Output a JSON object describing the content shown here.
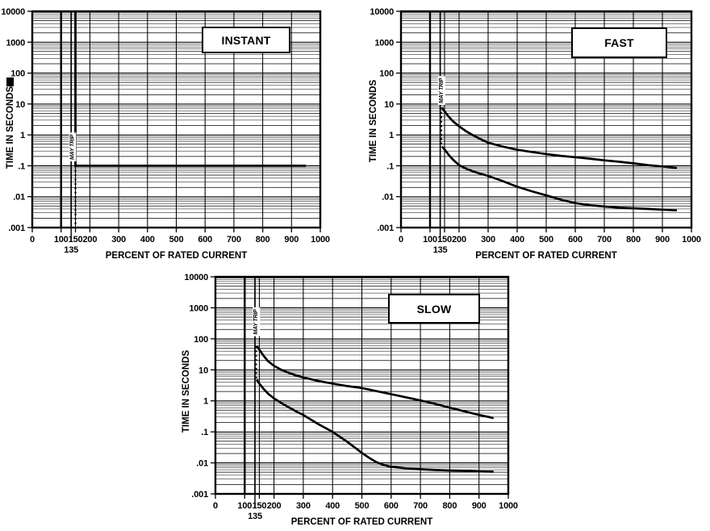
{
  "page": {
    "background": "#ffffff",
    "ink_color": "#000000",
    "artifact_mark": {
      "present": true
    }
  },
  "chart_data": [
    {
      "type": "line",
      "title": "INSTANT",
      "xlabel": "PERCENT OF RATED CURRENT",
      "ylabel": "TIME IN SECONDS",
      "x_axis": {
        "scale": "linear",
        "min": 0,
        "max": 1000,
        "ticks": [
          0,
          100,
          150,
          200,
          300,
          400,
          500,
          600,
          700,
          800,
          900,
          1000
        ],
        "tick_labels": [
          "0",
          "100",
          "150",
          "200",
          "300",
          "400",
          "500",
          "600",
          "700",
          "800",
          "900",
          "1000"
        ],
        "gridlines": [
          100,
          150,
          200,
          300,
          400,
          500,
          600,
          700,
          800,
          900
        ],
        "callout_value": 135,
        "callout_label": "135"
      },
      "y_axis": {
        "scale": "log",
        "min": 0.001,
        "max": 10000,
        "ticks": [
          10000,
          1000,
          100,
          10,
          1,
          0.1,
          0.01,
          0.001
        ],
        "tick_labels": [
          "10000",
          "1000",
          "100",
          "10",
          "1",
          ".1",
          ".01",
          ".001"
        ]
      },
      "zone_label": {
        "text": "MAY TRIP",
        "x": 137,
        "y_center": 0.4
      },
      "series": [
        {
          "name": "must-hold-line-100pct",
          "style": "solid",
          "width": 2.4,
          "points": [
            [
              100,
              10000
            ],
            [
              100,
              0.001
            ]
          ]
        },
        {
          "name": "must-trip-line-135pct",
          "style": "solid",
          "width": 1.7,
          "points": [
            [
              135,
              10000
            ],
            [
              135,
              0.001
            ]
          ]
        },
        {
          "name": "max-trip-time-boundary",
          "style": "solid",
          "width": 2.8,
          "points": [
            [
              150,
              10000
            ],
            [
              150,
              0.1
            ],
            [
              950,
              0.1
            ]
          ]
        },
        {
          "name": "trip-boundary-extension",
          "style": "dotted",
          "width": 2.2,
          "points": [
            [
              150,
              0.1
            ],
            [
              150,
              0.0011
            ]
          ]
        }
      ]
    },
    {
      "type": "line",
      "title": "FAST",
      "xlabel": "PERCENT OF RATED CURRENT",
      "ylabel": "TIME IN SECONDS",
      "x_axis": {
        "scale": "linear",
        "min": 0,
        "max": 1000,
        "ticks": [
          0,
          100,
          150,
          200,
          300,
          400,
          500,
          600,
          700,
          800,
          900,
          1000
        ],
        "tick_labels": [
          "0",
          "100",
          "150",
          "200",
          "300",
          "400",
          "500",
          "600",
          "700",
          "800",
          "900",
          "1000"
        ],
        "gridlines": [
          100,
          150,
          200,
          300,
          400,
          500,
          600,
          700,
          800,
          900
        ],
        "callout_value": 135,
        "callout_label": "135"
      },
      "y_axis": {
        "scale": "log",
        "min": 0.001,
        "max": 10000,
        "ticks": [
          10000,
          1000,
          100,
          10,
          1,
          0.1,
          0.01,
          0.001
        ],
        "tick_labels": [
          "10000",
          "1000",
          "100",
          "10",
          "1",
          ".1",
          ".01",
          ".001"
        ]
      },
      "zone_label": {
        "text": "MAY TRIP",
        "x": 137,
        "y_center": 27
      },
      "series": [
        {
          "name": "must-hold-line-100pct",
          "style": "solid",
          "width": 2.4,
          "points": [
            [
              100,
              10000
            ],
            [
              100,
              0.001
            ]
          ]
        },
        {
          "name": "must-trip-line-135pct",
          "style": "solid",
          "width": 1.7,
          "points": [
            [
              135,
              10000
            ],
            [
              135,
              0.001
            ]
          ]
        },
        {
          "name": "max-trip-time-curve",
          "style": "solid",
          "width": 2.7,
          "points": [
            [
              141,
              7.5
            ],
            [
              150,
              5.8
            ],
            [
              165,
              3.8
            ],
            [
              180,
              2.7
            ],
            [
              200,
              1.9
            ],
            [
              225,
              1.3
            ],
            [
              250,
              0.95
            ],
            [
              275,
              0.72
            ],
            [
              300,
              0.56
            ],
            [
              350,
              0.42
            ],
            [
              400,
              0.33
            ],
            [
              450,
              0.28
            ],
            [
              500,
              0.24
            ],
            [
              550,
              0.21
            ],
            [
              600,
              0.19
            ],
            [
              650,
              0.17
            ],
            [
              700,
              0.15
            ],
            [
              750,
              0.135
            ],
            [
              800,
              0.12
            ],
            [
              850,
              0.105
            ],
            [
              900,
              0.095
            ],
            [
              950,
              0.085
            ]
          ]
        },
        {
          "name": "min-trip-time-curve",
          "style": "solid",
          "width": 2.7,
          "points": [
            [
              141,
              0.42
            ],
            [
              150,
              0.34
            ],
            [
              165,
              0.22
            ],
            [
              180,
              0.155
            ],
            [
              200,
              0.105
            ],
            [
              225,
              0.08
            ],
            [
              250,
              0.065
            ],
            [
              275,
              0.055
            ],
            [
              300,
              0.047
            ],
            [
              350,
              0.032
            ],
            [
              400,
              0.021
            ],
            [
              450,
              0.015
            ],
            [
              500,
              0.011
            ],
            [
              550,
              0.008
            ],
            [
              600,
              0.0062
            ],
            [
              650,
              0.0053
            ],
            [
              700,
              0.0048
            ],
            [
              750,
              0.0044
            ],
            [
              800,
              0.0042
            ],
            [
              850,
              0.004
            ],
            [
              900,
              0.0038
            ],
            [
              950,
              0.0036
            ]
          ]
        },
        {
          "name": "trip-band-extension",
          "style": "dotted",
          "width": 2.2,
          "points": [
            [
              139,
              7.5
            ],
            [
              139,
              0.42
            ]
          ]
        }
      ]
    },
    {
      "type": "line",
      "title": "SLOW",
      "xlabel": "PERCENT OF RATED CURRENT",
      "ylabel": "TIME IN SECONDS",
      "x_axis": {
        "scale": "linear",
        "min": 0,
        "max": 1000,
        "ticks": [
          0,
          100,
          150,
          200,
          300,
          400,
          500,
          600,
          700,
          800,
          900,
          1000
        ],
        "tick_labels": [
          "0",
          "100",
          "150",
          "200",
          "300",
          "400",
          "500",
          "600",
          "700",
          "800",
          "900",
          "1000"
        ],
        "gridlines": [
          100,
          150,
          200,
          300,
          400,
          500,
          600,
          700,
          800,
          900
        ],
        "callout_value": 135,
        "callout_label": "135"
      },
      "y_axis": {
        "scale": "log",
        "min": 0.001,
        "max": 10000,
        "ticks": [
          10000,
          1000,
          100,
          10,
          1,
          0.1,
          0.01,
          0.001
        ],
        "tick_labels": [
          "10000",
          "1000",
          "100",
          "10",
          "1",
          ".1",
          ".01",
          ".001"
        ]
      },
      "zone_label": {
        "text": "MAY TRIP",
        "x": 137,
        "y_center": 350
      },
      "series": [
        {
          "name": "must-hold-line-100pct",
          "style": "solid",
          "width": 2.4,
          "points": [
            [
              100,
              10000
            ],
            [
              100,
              0.001
            ]
          ]
        },
        {
          "name": "must-trip-line-135pct",
          "style": "solid",
          "width": 1.7,
          "points": [
            [
              135,
              10000
            ],
            [
              135,
              0.001
            ]
          ]
        },
        {
          "name": "max-trip-time-curve",
          "style": "solid",
          "width": 2.7,
          "points": [
            [
              141,
              58
            ],
            [
              150,
              45
            ],
            [
              165,
              28
            ],
            [
              180,
              19
            ],
            [
              200,
              13.5
            ],
            [
              225,
              10
            ],
            [
              250,
              8
            ],
            [
              275,
              6.6
            ],
            [
              300,
              5.7
            ],
            [
              350,
              4.4
            ],
            [
              400,
              3.6
            ],
            [
              450,
              3.0
            ],
            [
              500,
              2.6
            ],
            [
              550,
              2.05
            ],
            [
              600,
              1.65
            ],
            [
              650,
              1.3
            ],
            [
              700,
              1.03
            ],
            [
              750,
              0.8
            ],
            [
              800,
              0.6
            ],
            [
              850,
              0.46
            ],
            [
              900,
              0.35
            ],
            [
              950,
              0.28
            ]
          ]
        },
        {
          "name": "min-trip-time-curve",
          "style": "solid",
          "width": 2.7,
          "points": [
            [
              141,
              4.8
            ],
            [
              150,
              3.6
            ],
            [
              165,
              2.4
            ],
            [
              180,
              1.7
            ],
            [
              200,
              1.2
            ],
            [
              225,
              0.85
            ],
            [
              250,
              0.62
            ],
            [
              275,
              0.46
            ],
            [
              300,
              0.35
            ],
            [
              350,
              0.18
            ],
            [
              400,
              0.1
            ],
            [
              450,
              0.048
            ],
            [
              500,
              0.021
            ],
            [
              525,
              0.0145
            ],
            [
              550,
              0.0105
            ],
            [
              575,
              0.0085
            ],
            [
              600,
              0.0075
            ],
            [
              650,
              0.0067
            ],
            [
              700,
              0.0062
            ],
            [
              750,
              0.0059
            ],
            [
              800,
              0.0057
            ],
            [
              850,
              0.0055
            ],
            [
              900,
              0.0053
            ],
            [
              950,
              0.0052
            ]
          ]
        },
        {
          "name": "trip-band-extension",
          "style": "dotted",
          "width": 2.2,
          "points": [
            [
              139,
              58
            ],
            [
              139,
              4.8
            ]
          ]
        }
      ]
    }
  ]
}
